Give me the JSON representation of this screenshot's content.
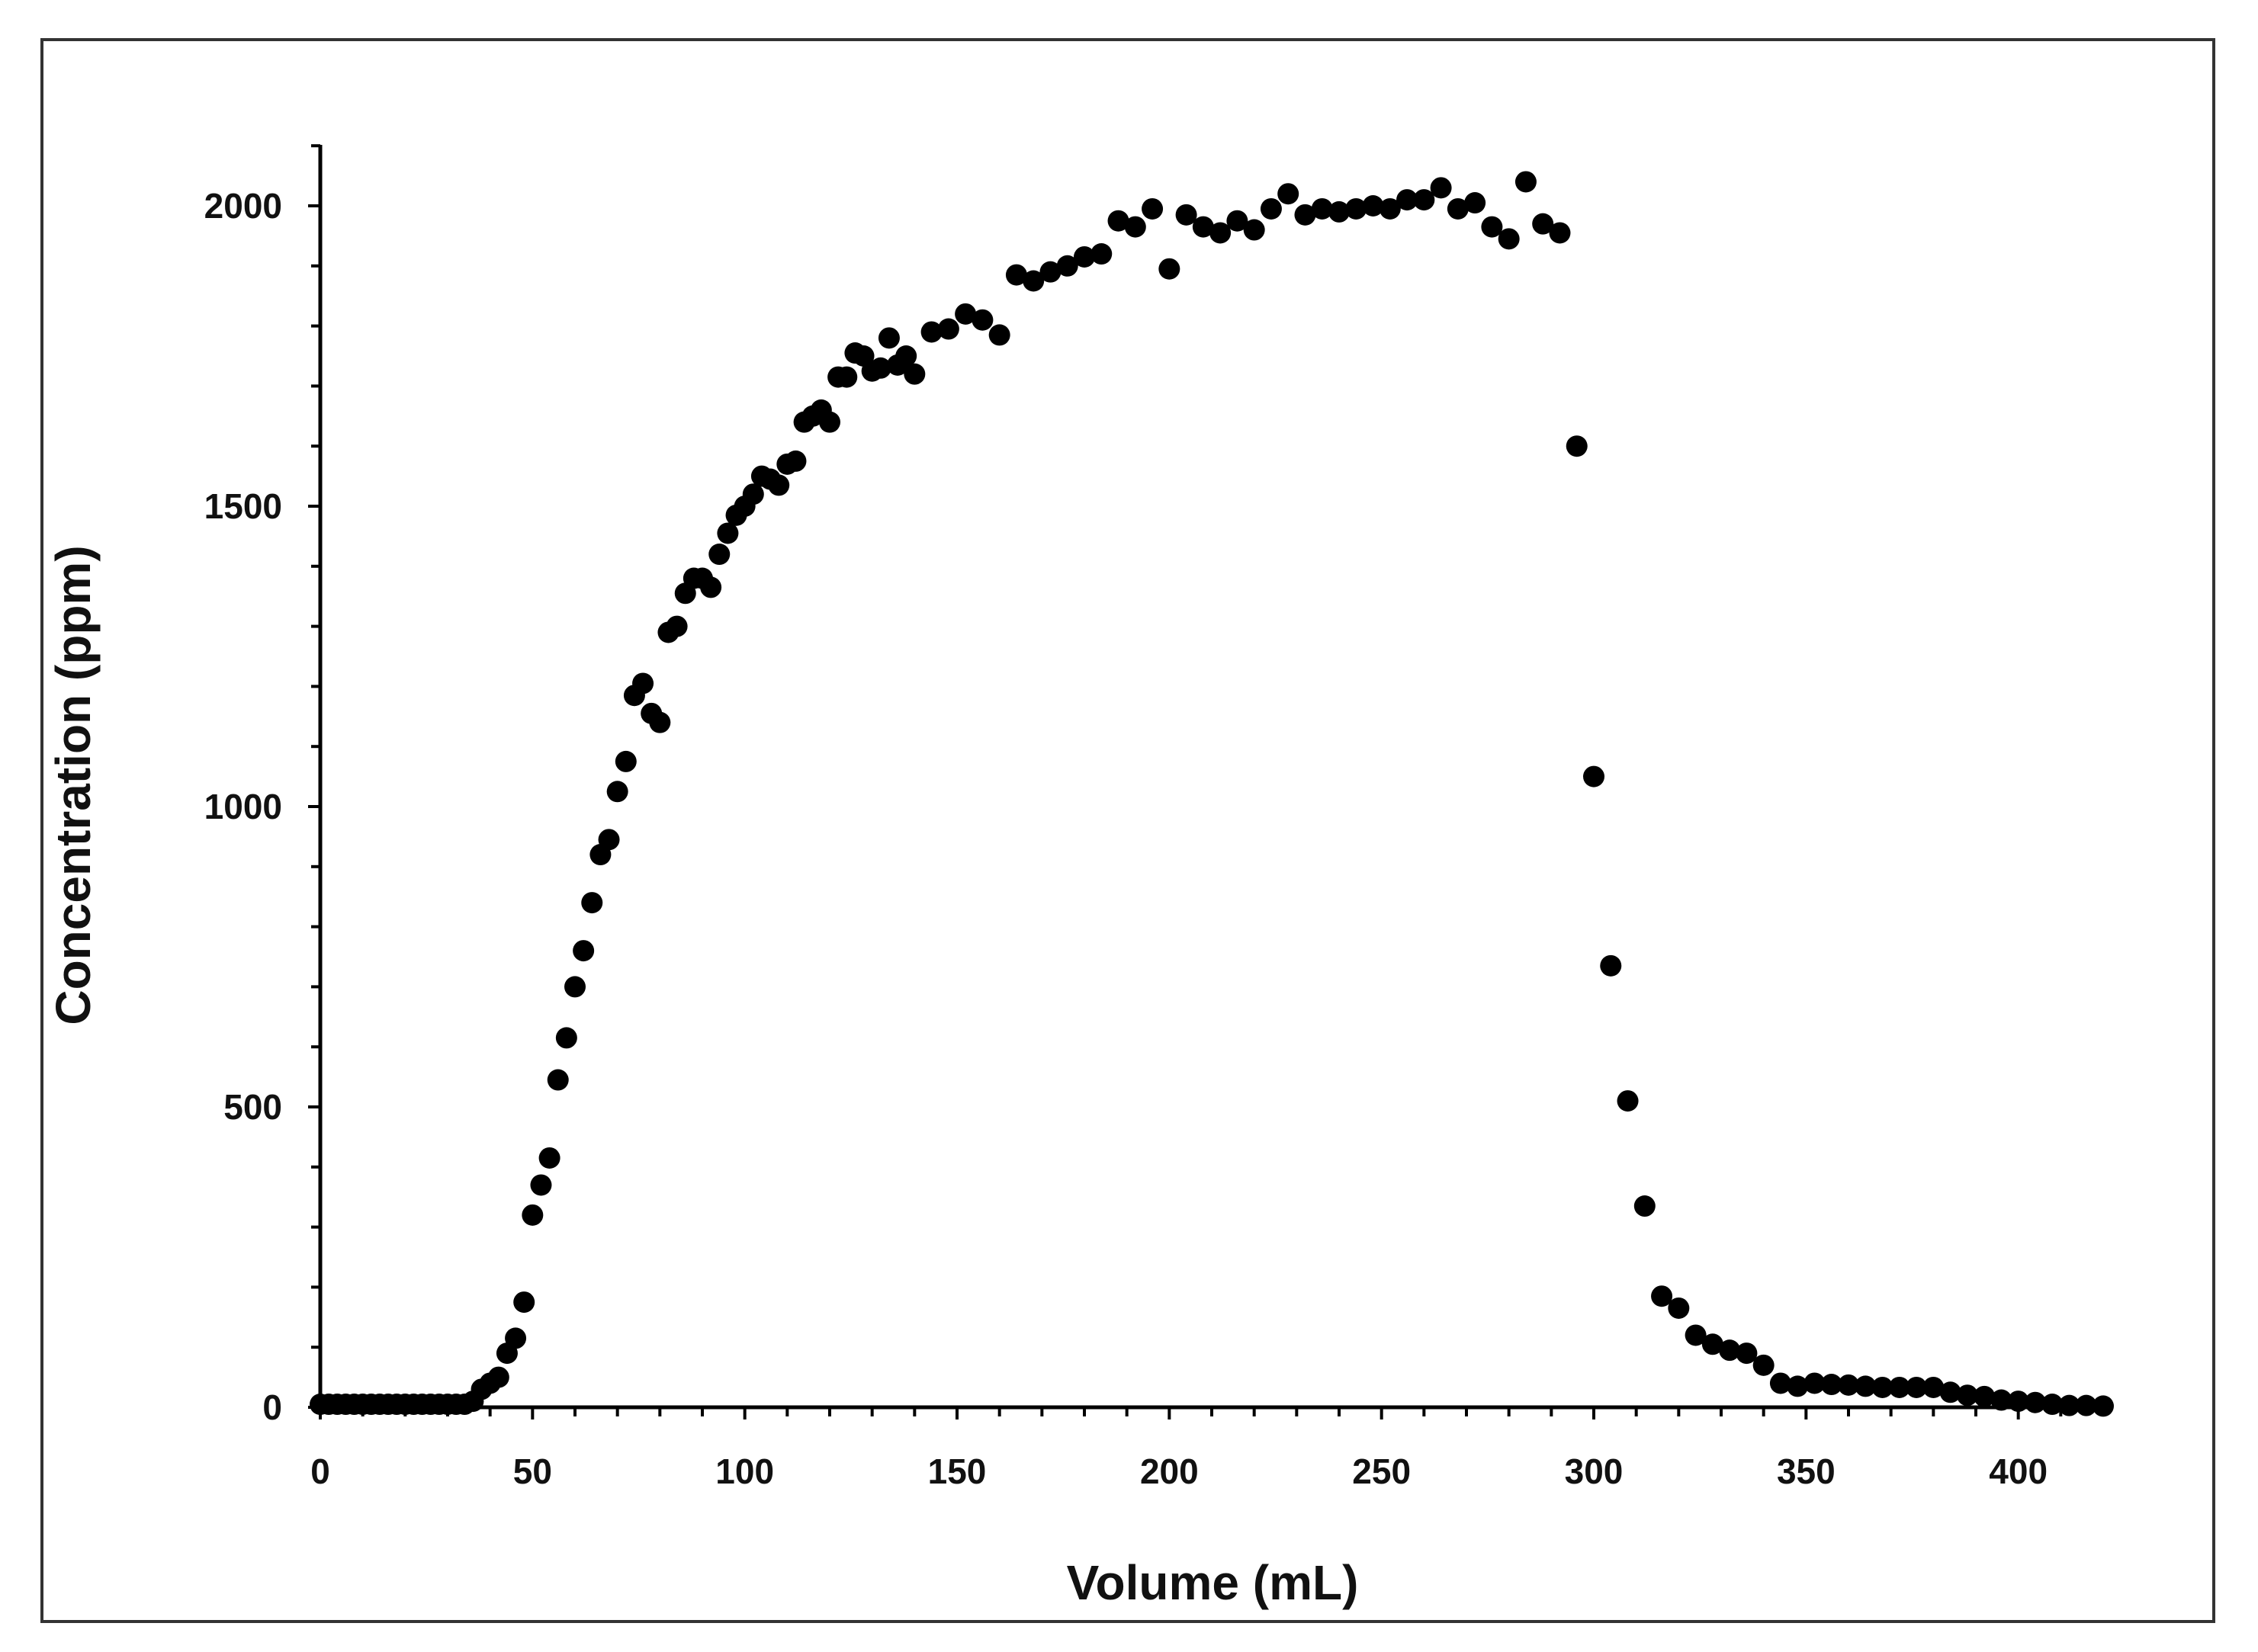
{
  "chart_data": {
    "type": "scatter",
    "title": "",
    "xlabel": "Volume (mL)",
    "ylabel": "Concentration (ppm)",
    "xlim": [
      0,
      420
    ],
    "ylim": [
      0,
      2100
    ],
    "x_ticks": [
      "0",
      "50",
      "100",
      "150",
      "200",
      "250",
      "300",
      "350",
      "400"
    ],
    "y_ticks": [
      "0",
      "500",
      "1000",
      "1500",
      "2000"
    ],
    "grid": false,
    "legend": "none",
    "marker_color": "#000000",
    "series": [
      {
        "points": [
          [
            0,
            5
          ],
          [
            2,
            5
          ],
          [
            4,
            5
          ],
          [
            6,
            5
          ],
          [
            8,
            5
          ],
          [
            10,
            5
          ],
          [
            12,
            5
          ],
          [
            14,
            5
          ],
          [
            16,
            5
          ],
          [
            18,
            5
          ],
          [
            20,
            5
          ],
          [
            22,
            5
          ],
          [
            24,
            5
          ],
          [
            26,
            5
          ],
          [
            28,
            5
          ],
          [
            30,
            5
          ],
          [
            32,
            5
          ],
          [
            34,
            5
          ],
          [
            36,
            10
          ],
          [
            38,
            30
          ],
          [
            40,
            40
          ],
          [
            42,
            50
          ],
          [
            44,
            90
          ],
          [
            46,
            115
          ],
          [
            48,
            175
          ],
          [
            50,
            320
          ],
          [
            52,
            370
          ],
          [
            54,
            415
          ],
          [
            56,
            545
          ],
          [
            58,
            615
          ],
          [
            60,
            700
          ],
          [
            62,
            760
          ],
          [
            64,
            840
          ],
          [
            66,
            920
          ],
          [
            68,
            945
          ],
          [
            70,
            1025
          ],
          [
            72,
            1075
          ],
          [
            74,
            1185
          ],
          [
            76,
            1205
          ],
          [
            78,
            1155
          ],
          [
            80,
            1140
          ],
          [
            82,
            1290
          ],
          [
            84,
            1300
          ],
          [
            86,
            1355
          ],
          [
            88,
            1380
          ],
          [
            90,
            1380
          ],
          [
            92,
            1365
          ],
          [
            94,
            1420
          ],
          [
            96,
            1455
          ],
          [
            98,
            1485
          ],
          [
            100,
            1500
          ],
          [
            102,
            1520
          ],
          [
            104,
            1550
          ],
          [
            106,
            1545
          ],
          [
            108,
            1535
          ],
          [
            110,
            1570
          ],
          [
            112,
            1575
          ],
          [
            114,
            1640
          ],
          [
            116,
            1650
          ],
          [
            118,
            1660
          ],
          [
            120,
            1640
          ],
          [
            122,
            1715
          ],
          [
            124,
            1715
          ],
          [
            126,
            1755
          ],
          [
            128,
            1750
          ],
          [
            130,
            1725
          ],
          [
            132,
            1730
          ],
          [
            134,
            1780
          ],
          [
            136,
            1735
          ],
          [
            138,
            1750
          ],
          [
            140,
            1720
          ],
          [
            144,
            1790
          ],
          [
            148,
            1795
          ],
          [
            152,
            1820
          ],
          [
            156,
            1810
          ],
          [
            160,
            1785
          ],
          [
            164,
            1885
          ],
          [
            168,
            1875
          ],
          [
            172,
            1890
          ],
          [
            176,
            1900
          ],
          [
            180,
            1915
          ],
          [
            184,
            1920
          ],
          [
            188,
            1975
          ],
          [
            192,
            1965
          ],
          [
            196,
            1995
          ],
          [
            200,
            1895
          ],
          [
            204,
            1985
          ],
          [
            208,
            1965
          ],
          [
            212,
            1955
          ],
          [
            216,
            1975
          ],
          [
            220,
            1960
          ],
          [
            224,
            1995
          ],
          [
            228,
            2020
          ],
          [
            232,
            1985
          ],
          [
            236,
            1995
          ],
          [
            240,
            1990
          ],
          [
            244,
            1995
          ],
          [
            248,
            2000
          ],
          [
            252,
            1995
          ],
          [
            256,
            2010
          ],
          [
            260,
            2010
          ],
          [
            264,
            2030
          ],
          [
            268,
            1995
          ],
          [
            272,
            2005
          ],
          [
            276,
            1965
          ],
          [
            280,
            1945
          ],
          [
            284,
            2040
          ],
          [
            288,
            1970
          ],
          [
            292,
            1955
          ],
          [
            296,
            1600
          ],
          [
            300,
            1050
          ],
          [
            304,
            735
          ],
          [
            308,
            510
          ],
          [
            312,
            335
          ],
          [
            316,
            185
          ],
          [
            320,
            165
          ],
          [
            324,
            120
          ],
          [
            328,
            105
          ],
          [
            332,
            95
          ],
          [
            336,
            90
          ],
          [
            340,
            70
          ],
          [
            344,
            40
          ],
          [
            348,
            35
          ],
          [
            352,
            40
          ],
          [
            356,
            38
          ],
          [
            360,
            37
          ],
          [
            364,
            35
          ],
          [
            368,
            33
          ],
          [
            372,
            33
          ],
          [
            376,
            33
          ],
          [
            380,
            33
          ],
          [
            384,
            25
          ],
          [
            388,
            20
          ],
          [
            392,
            18
          ],
          [
            396,
            12
          ],
          [
            400,
            10
          ],
          [
            404,
            8
          ],
          [
            408,
            5
          ],
          [
            412,
            3
          ],
          [
            416,
            3
          ],
          [
            420,
            2
          ]
        ]
      }
    ]
  }
}
